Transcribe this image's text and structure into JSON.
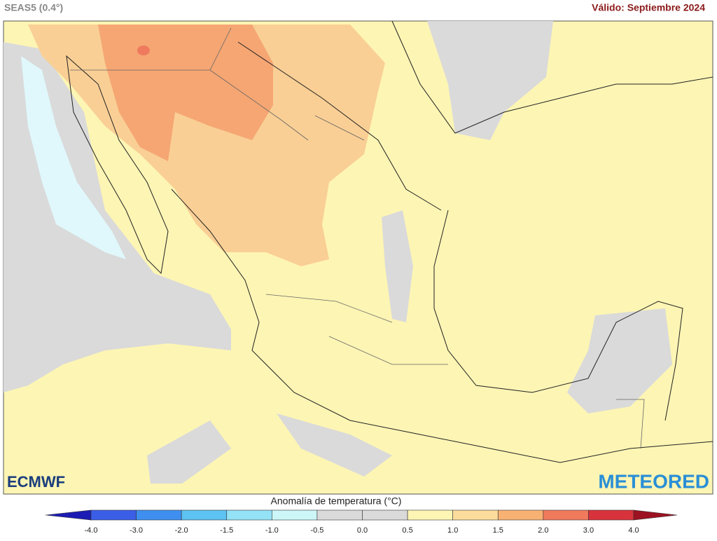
{
  "header": {
    "left": "SEAS5 (0.4°)",
    "right": "Válido: Septiembre 2024"
  },
  "logos": {
    "left": "ECMWF",
    "right": "METEORED"
  },
  "legend": {
    "title": "Anomalía de temperatura (°C)",
    "labels": [
      "-4.0",
      "-3.0",
      "-2.0",
      "-1.5",
      "-1.0",
      "-0.5",
      "0.0",
      "0.5",
      "1.0",
      "1.5",
      "2.0",
      "3.0",
      "4.0"
    ],
    "colors": [
      "#1c1cb4",
      "#3a5ee6",
      "#3f8ff0",
      "#5cc3f2",
      "#94e2f6",
      "#ccf6f8",
      "#dadada",
      "#dadada",
      "#fdf5b4",
      "#fbdc9c",
      "#f7b273",
      "#f07a5c",
      "#d8333c",
      "#9c1222"
    ]
  }
}
